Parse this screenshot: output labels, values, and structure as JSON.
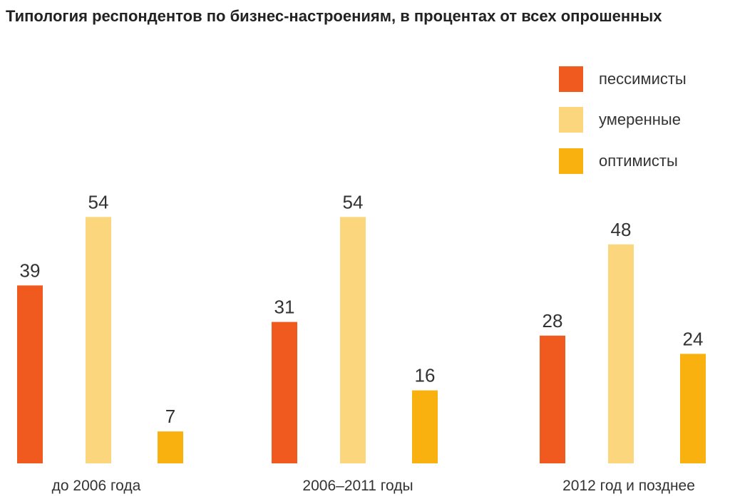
{
  "chart_data": {
    "type": "bar",
    "title": "Типология респондентов по бизнес-настроениям, в процентах от всех опрошенных",
    "categories": [
      "до 2006 года",
      "2006–2011 годы",
      "2012 год и позднее"
    ],
    "series": [
      {
        "name": "пессимисты",
        "color": "#F05A1E",
        "values": [
          39,
          31,
          28
        ]
      },
      {
        "name": "умеренные",
        "color": "#FBD67C",
        "values": [
          54,
          54,
          48
        ]
      },
      {
        "name": "оптимисты",
        "color": "#F9B10F",
        "values": [
          7,
          16,
          24
        ]
      }
    ],
    "xlabel": "",
    "ylabel": "",
    "ylim": [
      0,
      60
    ],
    "grid": false,
    "legend": "top-right"
  }
}
